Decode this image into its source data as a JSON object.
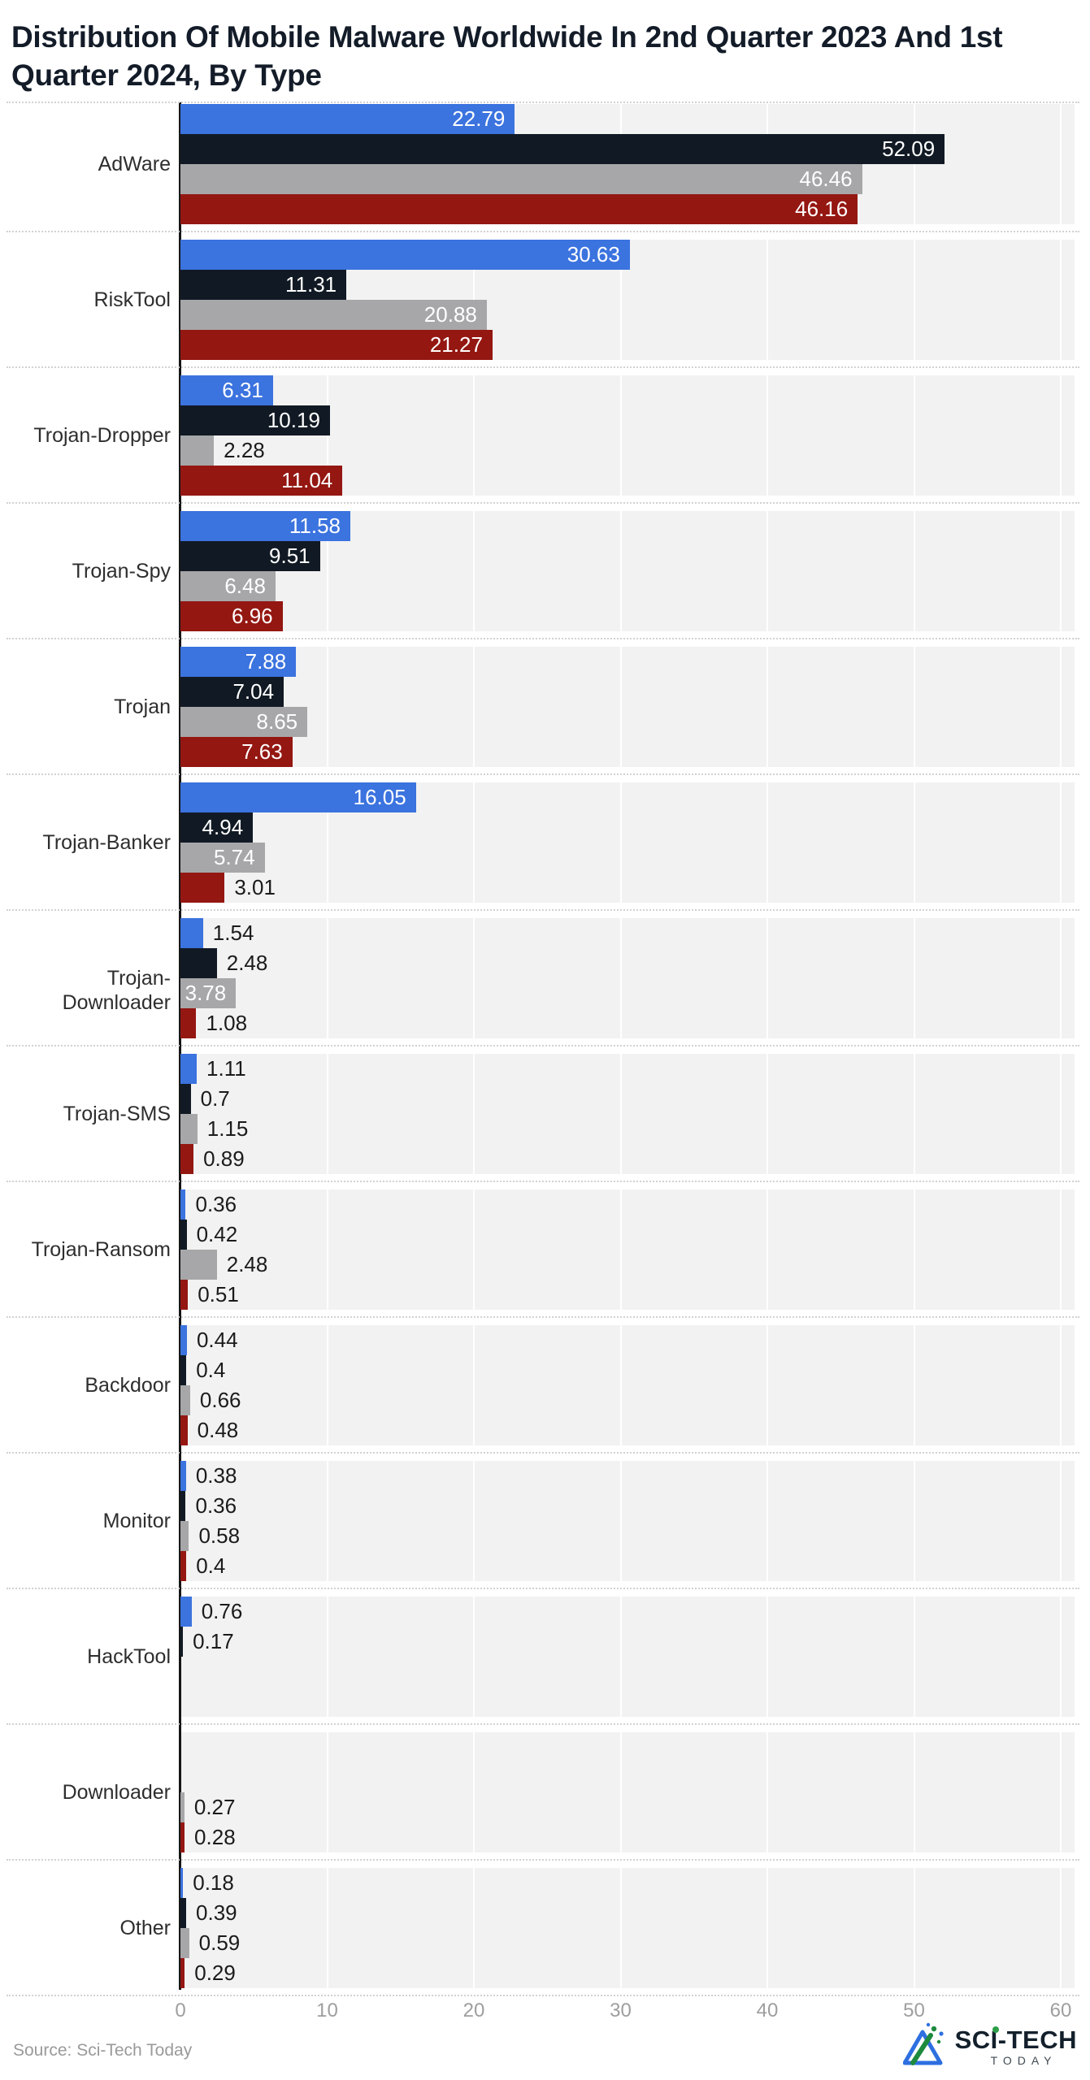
{
  "page": {
    "title_line1": "Distribution Of Mobile Malware Worldwide In 2nd Quarter 2023 And 1st",
    "title_line2": "Quarter 2024, By Type",
    "source": "Source: Sci-Tech Today",
    "logo": {
      "part1": "SC",
      "part2": "I",
      "part3": "-TECH",
      "subtext": "TODAY"
    }
  },
  "colors": {
    "series_blue": "#3b73df",
    "series_dark_navy": "#111a24",
    "series_gray": "#a7a7a9",
    "series_dark_red": "#941712",
    "band_background": "#f2f2f2",
    "axis_line": "#161616",
    "tick_label": "#9e9e9e",
    "value_label_inside": "#ffffff",
    "value_label_outside": "#1b1b1b",
    "title_text": "#131c28"
  },
  "chart_data": {
    "type": "bar",
    "orientation": "horizontal",
    "title": "Distribution Of Mobile Malware Worldwide In 2nd Quarter 2023 And 1st Quarter 2024, By Type",
    "xlabel": "",
    "ylabel": "",
    "xlim": [
      0,
      60
    ],
    "xticks": [
      0,
      10,
      20,
      30,
      40,
      50,
      60
    ],
    "grid": "vertical white gridlines over light-gray category bands, dotted separators between categories",
    "legend": "none",
    "value_labels": "shown on every bar",
    "categories": [
      "AdWare",
      "RiskTool",
      "Trojan-Dropper",
      "Trojan-Spy",
      "Trojan",
      "Trojan-Banker",
      "Trojan-Downloader",
      "Trojan-SMS",
      "Trojan-Ransom",
      "Backdoor",
      "Monitor",
      "HackTool",
      "Downloader",
      "Other"
    ],
    "series": [
      {
        "name": "blue",
        "color": "#3b73df",
        "values": [
          22.79,
          30.63,
          6.31,
          11.58,
          7.88,
          16.05,
          1.54,
          1.11,
          0.36,
          0.44,
          0.38,
          0.76,
          null,
          0.18
        ]
      },
      {
        "name": "dark-navy",
        "color": "#111a24",
        "values": [
          52.09,
          11.31,
          10.19,
          9.51,
          7.04,
          4.94,
          2.48,
          0.7,
          0.42,
          0.4,
          0.36,
          0.17,
          null,
          0.39
        ]
      },
      {
        "name": "gray",
        "color": "#a7a7a9",
        "values": [
          46.46,
          20.88,
          2.28,
          6.48,
          8.65,
          5.74,
          3.78,
          1.15,
          2.48,
          0.66,
          0.58,
          null,
          0.27,
          0.59
        ]
      },
      {
        "name": "dark-red",
        "color": "#941712",
        "values": [
          46.16,
          21.27,
          11.04,
          6.96,
          7.63,
          3.01,
          1.08,
          0.89,
          0.51,
          0.48,
          0.4,
          null,
          0.28,
          0.29
        ]
      }
    ]
  }
}
